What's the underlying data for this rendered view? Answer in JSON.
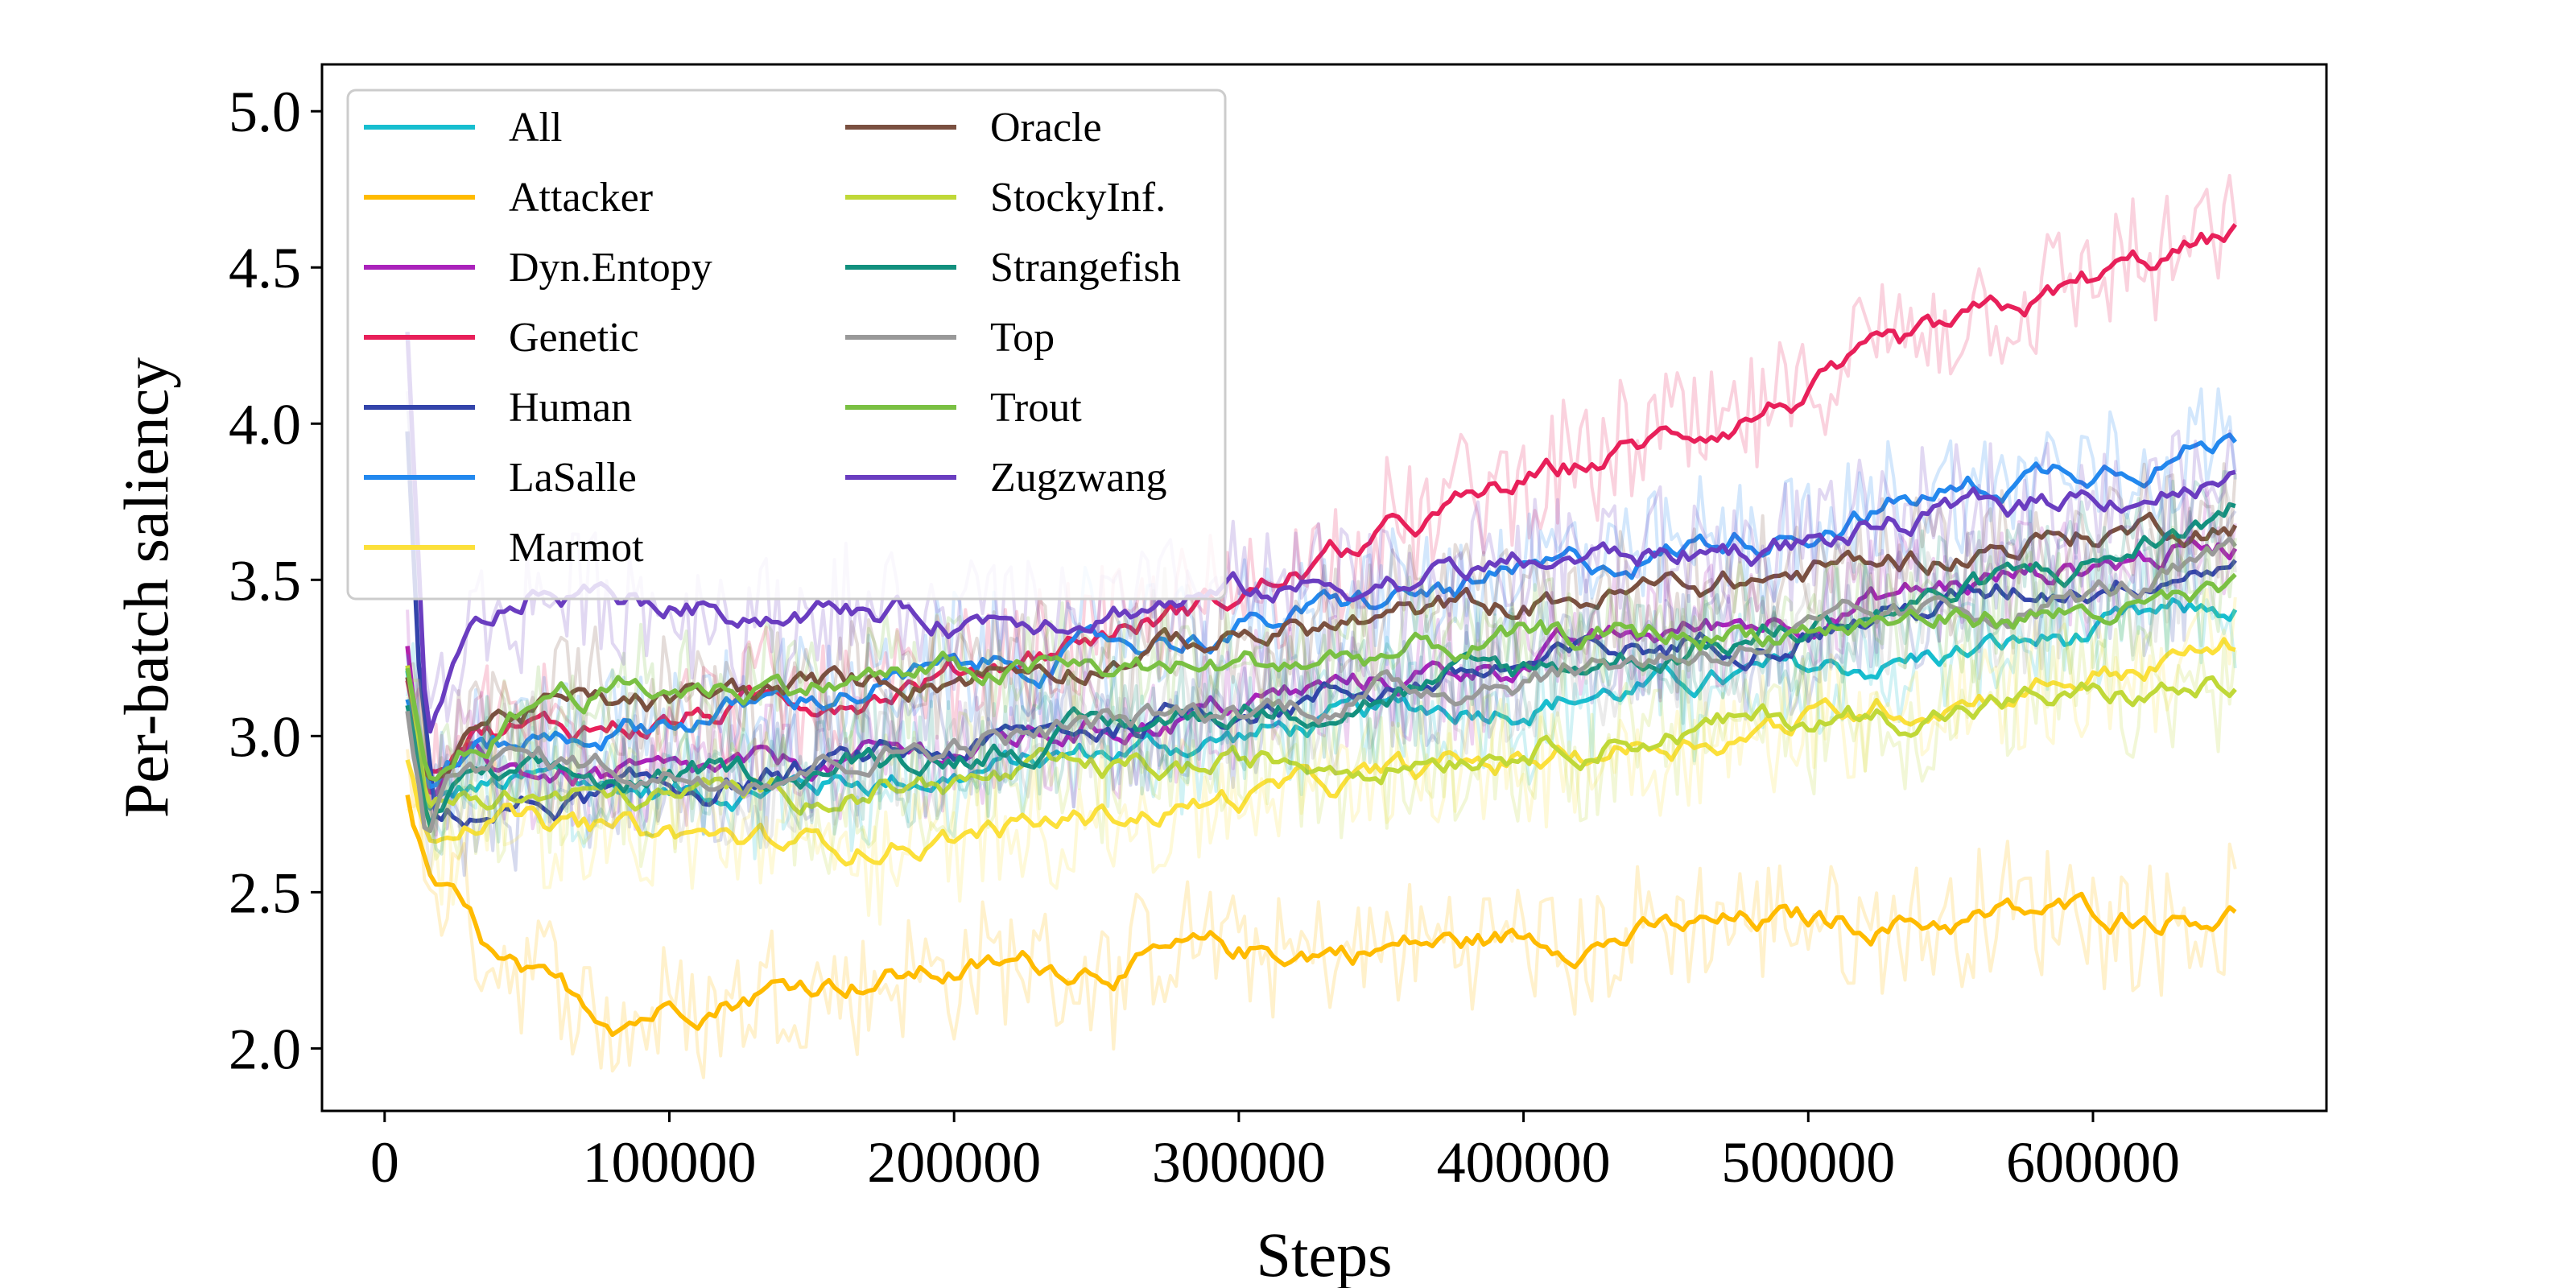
{
  "chart_data": {
    "type": "line",
    "title": "",
    "xlabel": "Steps",
    "ylabel": "Per-batch saliency",
    "xlim": [
      -22000,
      682000
    ],
    "ylim": [
      1.8,
      5.15
    ],
    "xticks": [
      0,
      100000,
      200000,
      300000,
      400000,
      500000,
      600000
    ],
    "xtick_labels": [
      "0",
      "100000",
      "200000",
      "300000",
      "400000",
      "500000",
      "600000"
    ],
    "yticks": [
      2.0,
      2.5,
      3.0,
      3.5,
      4.0,
      4.5,
      5.0
    ],
    "ytick_labels": [
      "2.0",
      "2.5",
      "3.0",
      "3.5",
      "4.0",
      "4.5",
      "5.0"
    ],
    "grid": false,
    "legend_location": "top-left",
    "legend_columns": 2,
    "series": [
      {
        "name": "All",
        "color": "#17becf",
        "x": [
          8000,
          15000,
          30000,
          60000,
          100000,
          200000,
          300000,
          400000,
          500000,
          600000,
          650000
        ],
        "values": [
          3.2,
          2.75,
          2.82,
          2.85,
          2.82,
          2.88,
          3.0,
          3.12,
          3.2,
          3.32,
          3.4
        ]
      },
      {
        "name": "Attacker",
        "color": "#ffbb00",
        "x": [
          8000,
          15000,
          25000,
          40000,
          60000,
          80000,
          100000,
          150000,
          200000,
          300000,
          400000,
          500000,
          600000,
          650000
        ],
        "values": [
          2.8,
          2.55,
          2.45,
          2.25,
          2.15,
          2.1,
          2.15,
          2.22,
          2.25,
          2.3,
          2.35,
          2.4,
          2.43,
          2.45
        ]
      },
      {
        "name": "Dyn.Entopy",
        "color": "#aa22bb",
        "x": [
          8000,
          15000,
          30000,
          60000,
          100000,
          200000,
          300000,
          400000,
          500000,
          600000,
          650000
        ],
        "values": [
          3.3,
          2.8,
          2.9,
          2.88,
          2.85,
          2.95,
          3.1,
          3.25,
          3.4,
          3.55,
          3.62
        ]
      },
      {
        "name": "Genetic",
        "color": "#e8205a",
        "x": [
          8000,
          15000,
          30000,
          60000,
          100000,
          200000,
          300000,
          400000,
          500000,
          600000,
          650000
        ],
        "values": [
          3.2,
          2.9,
          3.05,
          3.02,
          3.05,
          3.2,
          3.45,
          3.8,
          4.1,
          4.45,
          4.6
        ]
      },
      {
        "name": "Human",
        "color": "#3344aa",
        "x": [
          8000,
          12000,
          18000,
          30000,
          60000,
          100000,
          200000,
          300000,
          400000,
          500000,
          600000,
          650000
        ],
        "values": [
          4.0,
          3.2,
          2.72,
          2.75,
          2.78,
          2.82,
          2.95,
          3.1,
          3.22,
          3.35,
          3.5,
          3.58
        ]
      },
      {
        "name": "LaSalle",
        "color": "#2288ee",
        "x": [
          8000,
          15000,
          30000,
          60000,
          100000,
          200000,
          300000,
          400000,
          500000,
          600000,
          650000
        ],
        "values": [
          3.1,
          2.85,
          2.95,
          3.0,
          3.05,
          3.2,
          3.35,
          3.5,
          3.68,
          3.88,
          3.95
        ]
      },
      {
        "name": "Marmot",
        "color": "#fce03a",
        "x": [
          8000,
          15000,
          30000,
          60000,
          100000,
          150000,
          200000,
          300000,
          400000,
          500000,
          600000,
          650000
        ],
        "values": [
          2.95,
          2.7,
          2.78,
          2.7,
          2.68,
          2.65,
          2.68,
          2.8,
          2.92,
          3.05,
          3.2,
          3.28
        ]
      },
      {
        "name": "Oracle",
        "color": "#7a5040",
        "x": [
          8000,
          15000,
          30000,
          60000,
          100000,
          200000,
          300000,
          400000,
          500000,
          600000,
          650000
        ],
        "values": [
          3.2,
          2.8,
          3.05,
          3.1,
          3.1,
          3.2,
          3.32,
          3.42,
          3.52,
          3.65,
          3.7
        ]
      },
      {
        "name": "StockyInf.",
        "color": "#c0d838",
        "x": [
          8000,
          15000,
          30000,
          60000,
          100000,
          200000,
          300000,
          400000,
          500000,
          600000,
          650000
        ],
        "values": [
          3.2,
          2.75,
          2.82,
          2.8,
          2.8,
          2.85,
          2.9,
          2.98,
          3.05,
          3.12,
          3.15
        ]
      },
      {
        "name": "Strangefish",
        "color": "#12907e",
        "x": [
          8000,
          15000,
          30000,
          60000,
          100000,
          200000,
          300000,
          400000,
          500000,
          600000,
          650000
        ],
        "values": [
          3.1,
          2.72,
          2.85,
          2.85,
          2.85,
          2.95,
          3.08,
          3.2,
          3.35,
          3.55,
          3.72
        ]
      },
      {
        "name": "Top",
        "color": "#999999",
        "x": [
          8000,
          15000,
          30000,
          60000,
          100000,
          200000,
          300000,
          400000,
          500000,
          600000,
          650000
        ],
        "values": [
          3.1,
          2.7,
          2.95,
          2.92,
          2.88,
          2.98,
          3.08,
          3.2,
          3.32,
          3.45,
          3.55
        ]
      },
      {
        "name": "Trout",
        "color": "#7ac043",
        "x": [
          8000,
          15000,
          30000,
          60000,
          100000,
          200000,
          300000,
          400000,
          500000,
          600000,
          650000
        ],
        "values": [
          3.2,
          2.8,
          2.95,
          3.15,
          3.15,
          3.2,
          3.22,
          3.3,
          3.35,
          3.4,
          3.42
        ]
      },
      {
        "name": "Zugzwang",
        "color": "#6a3dc0",
        "x": [
          8000,
          15000,
          30000,
          50000,
          80000,
          100000,
          200000,
          300000,
          400000,
          500000,
          600000,
          650000
        ],
        "values": [
          4.3,
          3.0,
          3.3,
          3.45,
          3.45,
          3.42,
          3.38,
          3.45,
          3.55,
          3.62,
          3.78,
          3.82
        ]
      }
    ]
  }
}
